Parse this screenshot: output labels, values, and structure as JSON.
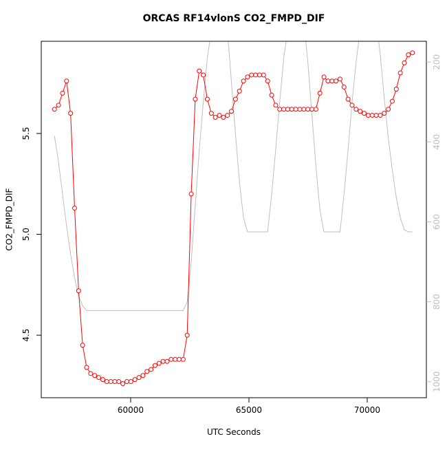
{
  "chart_data": {
    "type": "line",
    "title": "ORCAS RF14vlonS CO2_FMPD_DIF",
    "x_label": "UTC Seconds",
    "y_label": "CO2_FMPD_DIF",
    "x": [
      56780,
      56950,
      57120,
      57290,
      57460,
      57630,
      57800,
      57970,
      58140,
      58310,
      58480,
      58650,
      58820,
      58990,
      59160,
      59330,
      59500,
      59670,
      59840,
      60010,
      60180,
      60350,
      60520,
      60690,
      60860,
      61030,
      61200,
      61370,
      61540,
      61710,
      61880,
      62050,
      62220,
      62390,
      62560,
      62730,
      62900,
      63070,
      63240,
      63410,
      63580,
      63750,
      63920,
      64090,
      64260,
      64430,
      64600,
      64770,
      64940,
      65110,
      65280,
      65450,
      65620,
      65790,
      65960,
      66130,
      66300,
      66470,
      66640,
      66810,
      66980,
      67150,
      67320,
      67490,
      67660,
      67830,
      68000,
      68170,
      68340,
      68510,
      68680,
      68850,
      69020,
      69190,
      69360,
      69530,
      69700,
      69870,
      70040,
      70210,
      70380,
      70550,
      70720,
      70890,
      71060,
      71230,
      71400,
      71570,
      71740,
      71910
    ],
    "series": [
      {
        "color": "#ff0000",
        "marker": "circle",
        "values": [
          5.62,
          5.64,
          5.7,
          5.76,
          5.6,
          5.13,
          4.72,
          4.45,
          4.34,
          4.31,
          4.3,
          4.29,
          4.28,
          4.27,
          4.27,
          4.27,
          4.27,
          4.26,
          4.27,
          4.27,
          4.28,
          4.29,
          4.3,
          4.32,
          4.33,
          4.35,
          4.36,
          4.37,
          4.37,
          4.38,
          4.38,
          4.38,
          4.38,
          4.5,
          5.2,
          5.67,
          5.81,
          5.79,
          5.67,
          5.6,
          5.58,
          5.59,
          5.58,
          5.59,
          5.61,
          5.67,
          5.71,
          5.76,
          5.78,
          5.79,
          5.79,
          5.79,
          5.79,
          5.76,
          5.69,
          5.64,
          5.62,
          5.62,
          5.62,
          5.62,
          5.62,
          5.62,
          5.62,
          5.62,
          5.62,
          5.62,
          5.7,
          5.78,
          5.76,
          5.76,
          5.76,
          5.77,
          5.73,
          5.67,
          5.64,
          5.62,
          5.61,
          5.6,
          5.59,
          5.59,
          5.59,
          5.59,
          5.6,
          5.62,
          5.66,
          5.72,
          5.8,
          5.85,
          5.89,
          5.9
        ]
      },
      {
        "color": "#bebebe",
        "axis": "y2",
        "values": [
          385,
          450,
          530,
          610,
          680,
          740,
          785,
          810,
          822,
          822,
          822,
          822,
          822,
          822,
          822,
          822,
          822,
          822,
          822,
          822,
          822,
          822,
          822,
          822,
          822,
          822,
          822,
          822,
          822,
          822,
          822,
          822,
          822,
          800,
          700,
          560,
          420,
          300,
          190,
          120,
          100,
          100,
          100,
          120,
          250,
          380,
          500,
          590,
          625,
          625,
          625,
          625,
          625,
          625,
          530,
          420,
          300,
          190,
          120,
          100,
          100,
          100,
          100,
          200,
          330,
          460,
          570,
          625,
          625,
          625,
          625,
          625,
          530,
          420,
          300,
          200,
          120,
          100,
          100,
          100,
          100,
          180,
          290,
          390,
          470,
          540,
          590,
          620,
          625,
          625
        ]
      }
    ],
    "xlim": [
      56221,
      72500
    ],
    "xticks": [
      60000,
      65000,
      70000
    ],
    "ylim": [
      4.19,
      5.957
    ],
    "yticks": [
      4.5,
      {
        "value": 5,
        "label": "5.0"
      },
      5.5
    ],
    "y2lim": [
      1040,
      148
    ],
    "y2ticks": [
      200,
      400,
      600,
      800,
      1000
    ],
    "y2_tick_color": "#bebebe"
  }
}
